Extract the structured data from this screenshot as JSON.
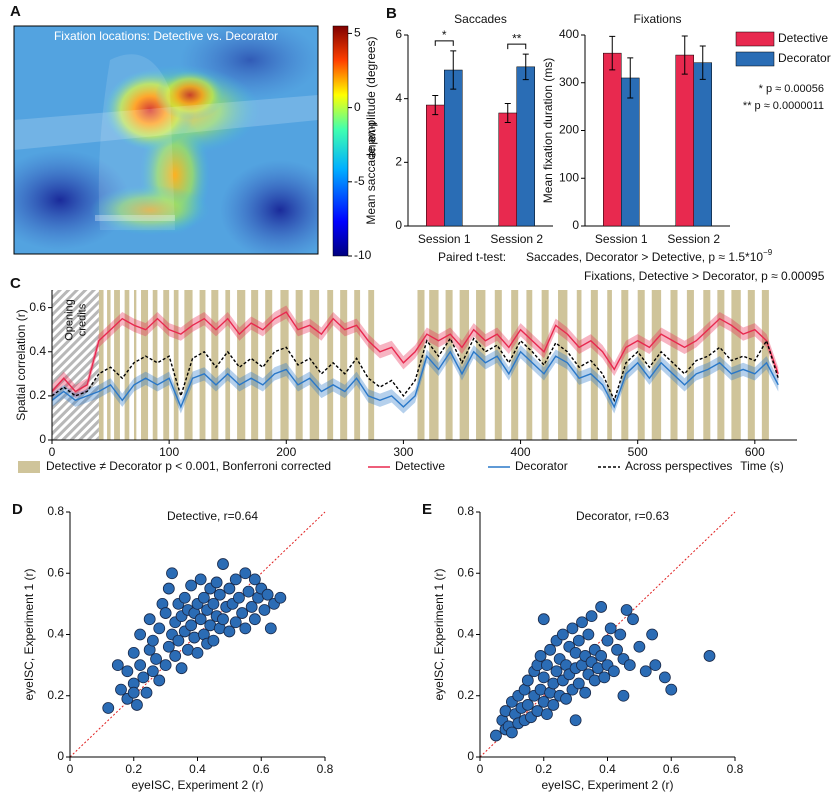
{
  "chart_data": [
    {
      "type": "heatmap",
      "panel": "A",
      "title": "Fixation locations: Detective vs. Decorator",
      "zlabel": "t-value",
      "zlim": [
        -10,
        5.5
      ],
      "zticks": [
        5,
        0,
        -5,
        -10
      ]
    },
    {
      "type": "bar",
      "panel": "B",
      "title": "Saccades",
      "ylabel": "Mean saccade amplitude (degrees)",
      "categories": [
        "Session 1",
        "Session 2"
      ],
      "series": [
        {
          "name": "Detective",
          "color": "#e8294f",
          "values": [
            3.8,
            3.55
          ],
          "errors": [
            0.3,
            0.3
          ]
        },
        {
          "name": "Decorator",
          "color": "#2a6db5",
          "values": [
            4.9,
            5.0
          ],
          "errors": [
            0.6,
            0.4
          ]
        }
      ],
      "significance": [
        "*",
        "**"
      ],
      "ylim": [
        0,
        6
      ],
      "yticks": [
        0,
        2,
        4,
        6
      ]
    },
    {
      "type": "bar",
      "title": "Fixations",
      "ylabel": "Mean fixation duration (ms)",
      "categories": [
        "Session 1",
        "Session 2"
      ],
      "series": [
        {
          "name": "Detective",
          "color": "#e8294f",
          "values": [
            362,
            358
          ],
          "errors": [
            35,
            40
          ]
        },
        {
          "name": "Decorator",
          "color": "#2a6db5",
          "values": [
            310,
            342
          ],
          "errors": [
            42,
            35
          ]
        }
      ],
      "ylim": [
        0,
        400
      ],
      "yticks": [
        0,
        100,
        200,
        300,
        400
      ],
      "legend": "right",
      "notes": [
        "* p ≈ 0.00056",
        "** p ≈ 0.0000011"
      ],
      "ttest": {
        "label": "Paired t-test:",
        "lines": [
          "Saccades, Decorator > Detective, p ≈ 1.5*10",
          "Fixations, Detective > Decorator, p ≈ 0.00095"
        ],
        "superscript": "−9"
      }
    },
    {
      "type": "line",
      "panel": "C",
      "xlabel": "Time (s)",
      "ylabel": "Spatial correlation (r)",
      "x": [
        0,
        10,
        20,
        30,
        40,
        50,
        60,
        70,
        80,
        90,
        100,
        110,
        120,
        130,
        140,
        150,
        160,
        170,
        180,
        190,
        200,
        210,
        220,
        230,
        240,
        250,
        260,
        270,
        280,
        290,
        300,
        310,
        320,
        330,
        340,
        350,
        360,
        370,
        380,
        390,
        400,
        410,
        420,
        430,
        440,
        450,
        460,
        470,
        480,
        490,
        500,
        510,
        520,
        530,
        540,
        550,
        560,
        570,
        580,
        590,
        600,
        610,
        620
      ],
      "series": [
        {
          "name": "Detective",
          "color": "#e8294f",
          "error": 0.03,
          "values": [
            0.22,
            0.28,
            0.22,
            0.25,
            0.45,
            0.5,
            0.55,
            0.52,
            0.5,
            0.55,
            0.5,
            0.48,
            0.52,
            0.55,
            0.5,
            0.55,
            0.48,
            0.53,
            0.5,
            0.55,
            0.58,
            0.5,
            0.52,
            0.48,
            0.55,
            0.5,
            0.52,
            0.45,
            0.4,
            0.42,
            0.35,
            0.4,
            0.48,
            0.45,
            0.48,
            0.42,
            0.5,
            0.45,
            0.48,
            0.42,
            0.5,
            0.45,
            0.4,
            0.52,
            0.48,
            0.42,
            0.45,
            0.4,
            0.32,
            0.42,
            0.45,
            0.42,
            0.48,
            0.45,
            0.42,
            0.45,
            0.5,
            0.55,
            0.52,
            0.48,
            0.5,
            0.45,
            0.3
          ]
        },
        {
          "name": "Decorator",
          "color": "#2a78c8",
          "error": 0.03,
          "values": [
            0.18,
            0.22,
            0.18,
            0.2,
            0.22,
            0.25,
            0.18,
            0.25,
            0.28,
            0.25,
            0.28,
            0.15,
            0.28,
            0.3,
            0.25,
            0.3,
            0.25,
            0.28,
            0.25,
            0.3,
            0.32,
            0.25,
            0.28,
            0.22,
            0.25,
            0.22,
            0.28,
            0.2,
            0.18,
            0.2,
            0.15,
            0.2,
            0.38,
            0.32,
            0.4,
            0.3,
            0.4,
            0.35,
            0.38,
            0.3,
            0.4,
            0.35,
            0.3,
            0.38,
            0.35,
            0.28,
            0.3,
            0.25,
            0.15,
            0.3,
            0.35,
            0.28,
            0.35,
            0.3,
            0.25,
            0.3,
            0.32,
            0.35,
            0.3,
            0.32,
            0.3,
            0.35,
            0.25
          ]
        },
        {
          "name": "Across perspectives",
          "color": "#000000",
          "dashed": true,
          "values": [
            0.2,
            0.24,
            0.2,
            0.22,
            0.3,
            0.33,
            0.28,
            0.35,
            0.38,
            0.35,
            0.38,
            0.2,
            0.37,
            0.4,
            0.33,
            0.4,
            0.33,
            0.37,
            0.33,
            0.4,
            0.42,
            0.34,
            0.37,
            0.3,
            0.35,
            0.3,
            0.37,
            0.28,
            0.24,
            0.27,
            0.2,
            0.27,
            0.45,
            0.38,
            0.46,
            0.35,
            0.46,
            0.4,
            0.43,
            0.35,
            0.45,
            0.4,
            0.34,
            0.44,
            0.4,
            0.33,
            0.36,
            0.3,
            0.18,
            0.35,
            0.4,
            0.33,
            0.4,
            0.35,
            0.3,
            0.36,
            0.38,
            0.42,
            0.36,
            0.38,
            0.36,
            0.45,
            0.28
          ]
        }
      ],
      "significance_label": "Detective ≠ Decorator p < 0.001, Bonferroni corrected",
      "significance_color": "#cfc49a",
      "significant": [
        [
          40,
          44
        ],
        [
          47,
          50
        ],
        [
          53,
          58
        ],
        [
          62,
          66
        ],
        [
          70,
          72
        ],
        [
          76,
          82
        ],
        [
          86,
          90
        ],
        [
          95,
          100
        ],
        [
          104,
          108
        ],
        [
          113,
          120
        ],
        [
          126,
          131
        ],
        [
          136,
          142
        ],
        [
          148,
          152
        ],
        [
          158,
          165
        ],
        [
          170,
          176
        ],
        [
          182,
          188
        ],
        [
          195,
          202
        ],
        [
          208,
          214
        ],
        [
          220,
          228
        ],
        [
          235,
          240
        ],
        [
          246,
          252
        ],
        [
          258,
          263
        ],
        [
          270,
          275
        ],
        [
          312,
          318
        ],
        [
          322,
          330
        ],
        [
          336,
          342
        ],
        [
          348,
          356
        ],
        [
          362,
          370
        ],
        [
          378,
          384
        ],
        [
          392,
          398
        ],
        [
          405,
          410
        ],
        [
          418,
          424
        ],
        [
          432,
          440
        ],
        [
          448,
          452
        ],
        [
          460,
          466
        ],
        [
          474,
          478
        ],
        [
          486,
          492
        ],
        [
          500,
          506
        ],
        [
          512,
          520
        ],
        [
          528,
          534
        ],
        [
          542,
          548
        ],
        [
          556,
          562
        ],
        [
          568,
          574
        ],
        [
          580,
          588
        ],
        [
          594,
          600
        ],
        [
          606,
          612
        ]
      ],
      "opening_credits": {
        "label": [
          "Opening",
          "credits"
        ],
        "range": [
          0,
          40
        ]
      },
      "xlim": [
        0,
        636
      ],
      "ylim": [
        0,
        0.68
      ],
      "xticks": [
        0,
        100,
        200,
        300,
        400,
        500,
        600
      ],
      "yticks": [
        0,
        0.2,
        0.4,
        0.6
      ]
    },
    {
      "type": "scatter",
      "panel": "D",
      "title": "Detective, r=0.64",
      "xlabel": "eyeISC, Experiment 2 (r)",
      "ylabel": "eyeISC, Experiment 1 (r)",
      "color": "#2b6cb5",
      "x": [
        0.12,
        0.15,
        0.16,
        0.18,
        0.18,
        0.2,
        0.2,
        0.21,
        0.22,
        0.22,
        0.23,
        0.24,
        0.25,
        0.25,
        0.26,
        0.26,
        0.27,
        0.28,
        0.28,
        0.29,
        0.3,
        0.3,
        0.31,
        0.31,
        0.32,
        0.32,
        0.33,
        0.33,
        0.34,
        0.34,
        0.35,
        0.35,
        0.36,
        0.36,
        0.37,
        0.37,
        0.38,
        0.38,
        0.39,
        0.39,
        0.4,
        0.4,
        0.41,
        0.41,
        0.42,
        0.42,
        0.43,
        0.43,
        0.44,
        0.44,
        0.45,
        0.45,
        0.46,
        0.46,
        0.47,
        0.47,
        0.48,
        0.48,
        0.49,
        0.5,
        0.5,
        0.51,
        0.52,
        0.52,
        0.53,
        0.54,
        0.55,
        0.55,
        0.56,
        0.57,
        0.58,
        0.58,
        0.59,
        0.6,
        0.61,
        0.62,
        0.63,
        0.64,
        0.66,
        0.2
      ],
      "y": [
        0.16,
        0.3,
        0.22,
        0.28,
        0.19,
        0.24,
        0.34,
        0.17,
        0.3,
        0.4,
        0.26,
        0.21,
        0.35,
        0.45,
        0.28,
        0.38,
        0.32,
        0.25,
        0.42,
        0.5,
        0.3,
        0.47,
        0.36,
        0.55,
        0.4,
        0.6,
        0.33,
        0.44,
        0.5,
        0.38,
        0.29,
        0.46,
        0.41,
        0.52,
        0.35,
        0.48,
        0.43,
        0.56,
        0.39,
        0.47,
        0.34,
        0.5,
        0.45,
        0.58,
        0.4,
        0.52,
        0.37,
        0.48,
        0.55,
        0.43,
        0.5,
        0.38,
        0.46,
        0.57,
        0.42,
        0.53,
        0.63,
        0.45,
        0.49,
        0.41,
        0.55,
        0.5,
        0.44,
        0.58,
        0.52,
        0.47,
        0.6,
        0.42,
        0.54,
        0.49,
        0.58,
        0.45,
        0.52,
        0.55,
        0.48,
        0.53,
        0.42,
        0.5,
        0.52,
        0.21
      ],
      "xlim": [
        0,
        0.8
      ],
      "ylim": [
        0,
        0.8
      ],
      "xticks": [
        0,
        0.2,
        0.4,
        0.6,
        0.8
      ],
      "yticks": [
        0,
        0.2,
        0.4,
        0.6,
        0.8
      ]
    },
    {
      "type": "scatter",
      "panel": "E",
      "title": "Decorator, r=0.63",
      "xlabel": "eyeISC, Experiment 2 (r)",
      "ylabel": "eyeISC, Experiment 1 (r)",
      "color": "#2b6cb5",
      "x": [
        0.05,
        0.07,
        0.08,
        0.08,
        0.09,
        0.1,
        0.1,
        0.11,
        0.12,
        0.12,
        0.13,
        0.14,
        0.14,
        0.15,
        0.15,
        0.16,
        0.17,
        0.17,
        0.18,
        0.18,
        0.19,
        0.19,
        0.2,
        0.2,
        0.21,
        0.21,
        0.22,
        0.22,
        0.23,
        0.23,
        0.24,
        0.24,
        0.25,
        0.25,
        0.26,
        0.26,
        0.27,
        0.27,
        0.28,
        0.28,
        0.29,
        0.29,
        0.3,
        0.3,
        0.31,
        0.31,
        0.32,
        0.32,
        0.33,
        0.33,
        0.34,
        0.34,
        0.35,
        0.35,
        0.36,
        0.36,
        0.37,
        0.38,
        0.38,
        0.39,
        0.4,
        0.4,
        0.41,
        0.42,
        0.43,
        0.44,
        0.45,
        0.46,
        0.47,
        0.48,
        0.5,
        0.52,
        0.54,
        0.55,
        0.58,
        0.6,
        0.45,
        0.3,
        0.2,
        0.72
      ],
      "y": [
        0.07,
        0.12,
        0.09,
        0.15,
        0.1,
        0.18,
        0.08,
        0.14,
        0.2,
        0.11,
        0.16,
        0.22,
        0.12,
        0.25,
        0.17,
        0.13,
        0.28,
        0.2,
        0.15,
        0.3,
        0.22,
        0.33,
        0.18,
        0.26,
        0.14,
        0.3,
        0.21,
        0.35,
        0.24,
        0.17,
        0.28,
        0.38,
        0.2,
        0.32,
        0.25,
        0.4,
        0.19,
        0.3,
        0.27,
        0.36,
        0.22,
        0.42,
        0.29,
        0.34,
        0.24,
        0.38,
        0.3,
        0.44,
        0.21,
        0.33,
        0.27,
        0.4,
        0.31,
        0.46,
        0.25,
        0.35,
        0.29,
        0.49,
        0.33,
        0.26,
        0.38,
        0.3,
        0.42,
        0.28,
        0.35,
        0.4,
        0.32,
        0.48,
        0.3,
        0.45,
        0.36,
        0.28,
        0.4,
        0.3,
        0.26,
        0.22,
        0.2,
        0.12,
        0.45,
        0.33
      ],
      "xlim": [
        0,
        0.8
      ],
      "ylim": [
        0,
        0.8
      ],
      "xticks": [
        0,
        0.2,
        0.4,
        0.6,
        0.8
      ],
      "yticks": [
        0,
        0.2,
        0.4,
        0.6,
        0.8
      ]
    }
  ]
}
